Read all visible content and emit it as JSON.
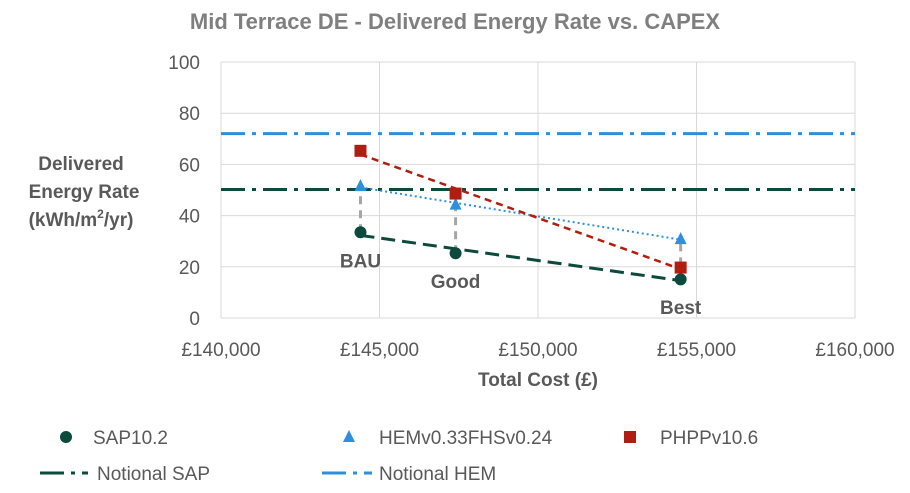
{
  "chart_data": {
    "type": "scatter",
    "title": "Mid Terrace DE - Delivered Energy Rate vs. CAPEX",
    "xlabel": "Total Cost (£)",
    "ylabel_lines": [
      "Delivered",
      "Energy Rate",
      "(kWh/m",
      "2",
      "/yr)"
    ],
    "xlim": [
      140000,
      160000
    ],
    "ylim": [
      0,
      100
    ],
    "x_ticks": [
      140000,
      145000,
      150000,
      155000,
      160000
    ],
    "x_tick_labels": [
      "£140,000",
      "£145,000",
      "£150,000",
      "£155,000",
      "£160,000"
    ],
    "y_ticks": [
      0,
      20,
      40,
      60,
      80,
      100
    ],
    "y_tick_labels": [
      "0",
      "20",
      "40",
      "60",
      "80",
      "100"
    ],
    "grid": true,
    "legend_position": "bottom",
    "series": [
      {
        "name": "SAP10.2",
        "marker": "circle",
        "color": "#0b4a3c",
        "x": [
          144400,
          147400,
          154500
        ],
        "y": [
          33.5,
          25.3,
          15.1
        ],
        "trendline": "dashed"
      },
      {
        "name": "HEMv0.33FHSv0.24",
        "marker": "triangle",
        "color": "#2f8fdc",
        "x": [
          144400,
          147400,
          154500
        ],
        "y": [
          51.5,
          44.3,
          30.8
        ],
        "trendline": "dotted"
      },
      {
        "name": "PHPPv10.6",
        "marker": "square",
        "color": "#b01e12",
        "x": [
          144400,
          147400,
          154500
        ],
        "y": [
          65.3,
          48.6,
          19.7
        ],
        "trendline": "dashed"
      }
    ],
    "reference_lines": [
      {
        "name": "Notional SAP",
        "y": 50.2,
        "color": "#0b4a3c",
        "style": "dash-dot"
      },
      {
        "name": "Notional HEM",
        "y": 72,
        "color": "#2f8fdc",
        "style": "dash-dot"
      }
    ],
    "annotations": [
      {
        "text": "BAU",
        "x": 144400,
        "y": 22
      },
      {
        "text": "Good",
        "x": 147400,
        "y": 14
      },
      {
        "text": "Best",
        "x": 154500,
        "y": 4
      }
    ],
    "connector_color": "#a6a6a6"
  }
}
